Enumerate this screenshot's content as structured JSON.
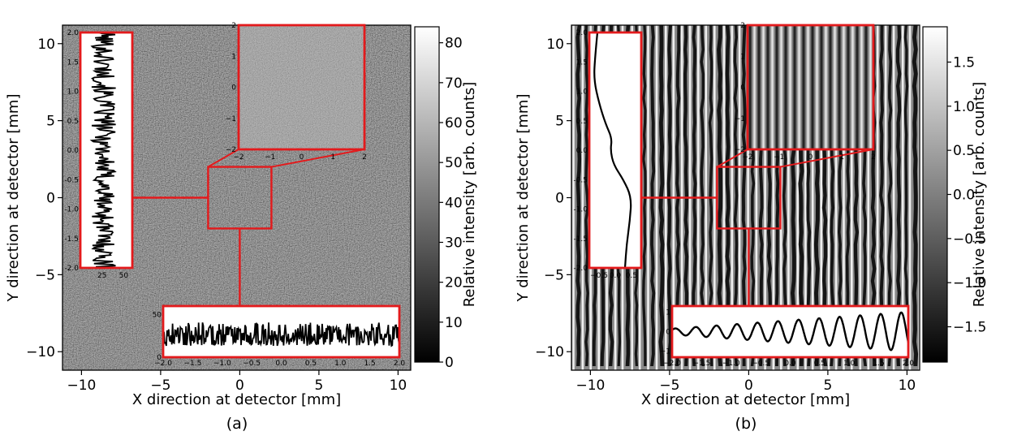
{
  "chart_data": [
    {
      "type": "heatmap",
      "panel_label": "(a)",
      "xlabel": "X direction at detector [mm]",
      "ylabel": "Y direction at detector [mm]",
      "xlim": [
        -11.2,
        10.8
      ],
      "ylim": [
        -11.2,
        11.2
      ],
      "xticks": [
        -10,
        -5,
        0,
        5,
        10
      ],
      "yticks": [
        -10,
        -5,
        0,
        5,
        10
      ],
      "xtick_labels": [
        "−10",
        "−5",
        "0",
        "5",
        "10"
      ],
      "ytick_labels": [
        "−10",
        "−5",
        "0",
        "5",
        "10"
      ],
      "pattern": "speckle noise",
      "colorbar": {
        "label": "Relative intensity [arb. counts]",
        "range": [
          0,
          84
        ],
        "ticks": [
          0,
          10,
          20,
          30,
          40,
          50,
          60,
          70,
          80
        ],
        "tick_labels": [
          "0",
          "10",
          "20",
          "30",
          "40",
          "50",
          "60",
          "70",
          "80"
        ],
        "colormap": "gray"
      },
      "zoom_box": {
        "x": [
          -2,
          2
        ],
        "y": [
          -2,
          2
        ]
      },
      "insets": {
        "vertical_profile": {
          "xticks": [
            25,
            50
          ],
          "xtick_labels": [
            "25",
            "50"
          ],
          "yticks": [
            -2.0,
            -1.5,
            -1.0,
            -0.5,
            0.0,
            0.5,
            1.0,
            1.5,
            2.0
          ],
          "ytick_labels": [
            "-2.0",
            "-1.5",
            "-1.0",
            "-0.5",
            "0.0",
            "0.5",
            "1.0",
            "1.5",
            "2.0"
          ],
          "xlim": [
            0,
            60
          ],
          "ylim": [
            -2.0,
            2.0
          ],
          "mean": 27,
          "amplitude": 14
        },
        "zoom_image": {
          "xticks": [
            -2,
            -1,
            0,
            1,
            2
          ],
          "xtick_labels": [
            "−2",
            "−1",
            "0",
            "1",
            "2"
          ],
          "yticks": [
            -2,
            -1,
            0,
            1,
            2
          ],
          "ytick_labels": [
            "−2",
            "−1",
            "0",
            "1",
            "2"
          ]
        },
        "horizontal_profile": {
          "xticks": [
            -2.0,
            -1.5,
            -1.0,
            -0.5,
            0.0,
            0.5,
            1.0,
            1.5,
            2.0
          ],
          "xtick_labels": [
            "−2.0",
            "−1.5",
            "−1.0",
            "−0.5",
            "0.0",
            "0.5",
            "1.0",
            "1.5",
            "2.0"
          ],
          "yticks": [
            0,
            50
          ],
          "ytick_labels": [
            "0",
            "50"
          ],
          "xlim": [
            -2.0,
            2.0
          ],
          "ylim": [
            0,
            60
          ],
          "mean": 27,
          "amplitude": 14
        }
      }
    },
    {
      "type": "heatmap",
      "panel_label": "(b)",
      "xlabel": "X direction at detector [mm]",
      "ylabel": "Y direction at detector [mm]",
      "xlim": [
        -11.2,
        10.8
      ],
      "ylim": [
        -11.2,
        11.2
      ],
      "xticks": [
        -10,
        -5,
        0,
        5,
        10
      ],
      "yticks": [
        -10,
        -5,
        0,
        5,
        10
      ],
      "xtick_labels": [
        "−10",
        "−5",
        "0",
        "5",
        "10"
      ],
      "ytick_labels": [
        "−10",
        "−5",
        "0",
        "5",
        "10"
      ],
      "pattern": "vertical interference fringes",
      "colorbar": {
        "label": "Relative intensity [arb. counts]",
        "range": [
          -1.9,
          1.9
        ],
        "ticks": [
          -1.5,
          -1.0,
          -0.5,
          0.0,
          0.5,
          1.0,
          1.5
        ],
        "tick_labels": [
          "−1.5",
          "−1.0",
          "−0.5",
          "0.0",
          "0.5",
          "1.0",
          "1.5"
        ],
        "colormap": "gray"
      },
      "zoom_box": {
        "x": [
          -2,
          2
        ],
        "y": [
          -2,
          2
        ]
      },
      "insets": {
        "vertical_profile": {
          "xticks": [
            -0.5,
            0.0,
            0.5
          ],
          "xtick_labels": [
            "−0.5",
            "0.0",
            "0.5"
          ],
          "yticks": [
            -2.0,
            -1.5,
            -1.0,
            -0.5,
            0.0,
            0.5,
            1.0,
            1.5,
            2.0
          ],
          "ytick_labels": [
            "-2.0",
            "-1.5",
            "-1.0",
            "-0.5",
            "0.0",
            "0.5",
            "1.0",
            "1.5",
            "2.0"
          ],
          "xlim": [
            -0.8,
            0.8
          ],
          "ylim": [
            -2.0,
            2.0
          ],
          "points": [
            [
              -0.55,
              2.0
            ],
            [
              -0.62,
              1.6
            ],
            [
              -0.66,
              1.2
            ],
            [
              -0.5,
              0.8
            ],
            [
              -0.3,
              0.45
            ],
            [
              -0.1,
              0.2
            ],
            [
              -0.15,
              0.0
            ],
            [
              -0.05,
              -0.25
            ],
            [
              0.25,
              -0.5
            ],
            [
              0.5,
              -0.8
            ],
            [
              0.45,
              -1.2
            ],
            [
              0.35,
              -1.6
            ],
            [
              0.3,
              -2.0
            ]
          ]
        },
        "zoom_image": {
          "xticks": [
            -2,
            -1,
            0,
            1,
            2
          ],
          "xtick_labels": [
            "−2",
            "−1",
            "0",
            "1",
            "2"
          ],
          "yticks": [
            -2,
            -1,
            0,
            1,
            2
          ],
          "ytick_labels": [
            "−2",
            "−1",
            "0",
            "1",
            "2"
          ]
        },
        "horizontal_profile": {
          "xticks": [
            -2.0,
            -1.5,
            -1.0,
            -0.5,
            0.0,
            0.5,
            1.0,
            1.5,
            2.0
          ],
          "xtick_labels": [
            "−2.0",
            "−1.5",
            "−1.0",
            "−0.5",
            "0.0",
            "0.5",
            "1.0",
            "1.5",
            "2.0"
          ],
          "yticks": [
            -1,
            0,
            1
          ],
          "ytick_labels": [
            "−1",
            "0",
            "1"
          ],
          "xlim": [
            -2.0,
            2.0
          ],
          "ylim": [
            -1.3,
            1.3
          ],
          "cycles": 11.5,
          "amp_start": 0.15,
          "amp_end": 1.0
        }
      }
    }
  ]
}
